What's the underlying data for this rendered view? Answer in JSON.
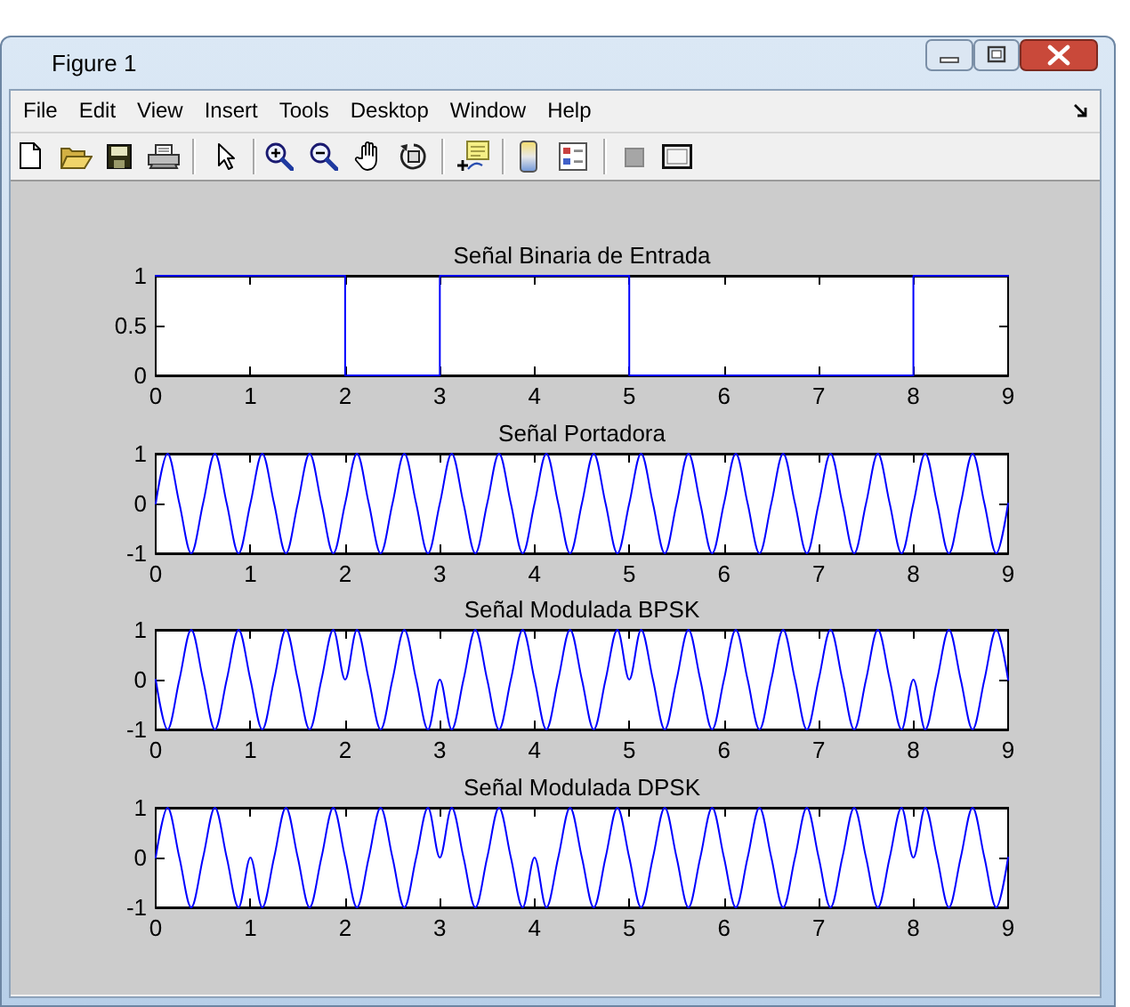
{
  "chart_data": [
    {
      "type": "other",
      "title": "Figure 1",
      "annotations": [
        "File",
        "Edit",
        "View",
        "Insert",
        "Tools",
        "Desktop",
        "Window",
        "Help"
      ]
    },
    {
      "type": "step",
      "title": "Señal Binaria de Entrada",
      "x": [
        0,
        1,
        2,
        3,
        4,
        5,
        6,
        7,
        8,
        9
      ],
      "values": [
        1,
        1,
        0,
        1,
        1,
        0,
        0,
        0,
        1,
        1
      ],
      "color": "#0000ff",
      "xlim": [
        0,
        9
      ],
      "xticks": [
        0,
        1,
        2,
        3,
        4,
        5,
        6,
        7,
        8,
        9
      ],
      "ylim": [
        0,
        1
      ],
      "yticks": [
        0,
        0.5,
        1
      ]
    },
    {
      "type": "line",
      "title": "Señal Portadora",
      "x": [
        0,
        0.125,
        0.25,
        0.375,
        0.5,
        0.625,
        0.75,
        0.875,
        1,
        1.125,
        1.25,
        1.375,
        1.5,
        1.625,
        1.75,
        1.875,
        2,
        2.125,
        2.25,
        2.375,
        2.5,
        2.625,
        2.75,
        2.875,
        3,
        3.125,
        3.25,
        3.375,
        3.5,
        3.625,
        3.75,
        3.875,
        4,
        4.125,
        4.25,
        4.375,
        4.5,
        4.625,
        4.75,
        4.875,
        5,
        5.125,
        5.25,
        5.375,
        5.5,
        5.625,
        5.75,
        5.875,
        6,
        6.125,
        6.25,
        6.375,
        6.5,
        6.625,
        6.75,
        6.875,
        7,
        7.125,
        7.25,
        7.375,
        7.5,
        7.625,
        7.75,
        7.875,
        8,
        8.125,
        8.25,
        8.375,
        8.5,
        8.625,
        8.75,
        8.875,
        9
      ],
      "values": [
        0,
        1,
        0,
        -1,
        0,
        1,
        0,
        -1,
        0,
        1,
        0,
        -1,
        0,
        1,
        0,
        -1,
        0,
        1,
        0,
        -1,
        0,
        1,
        0,
        -1,
        0,
        1,
        0,
        -1,
        0,
        1,
        0,
        -1,
        0,
        1,
        0,
        -1,
        0,
        1,
        0,
        -1,
        0,
        1,
        0,
        -1,
        0,
        1,
        0,
        -1,
        0,
        1,
        0,
        -1,
        0,
        1,
        0,
        -1,
        0,
        1,
        0,
        -1,
        0,
        1,
        0,
        -1,
        0,
        1,
        0,
        -1,
        0,
        1,
        0,
        -1,
        0
      ],
      "color": "#0000ff",
      "xlim": [
        0,
        9
      ],
      "xticks": [
        0,
        1,
        2,
        3,
        4,
        5,
        6,
        7,
        8,
        9
      ],
      "ylim": [
        -1,
        1
      ],
      "yticks": [
        -1,
        0,
        1
      ]
    },
    {
      "type": "line",
      "title": "Señal Modulada BPSK",
      "x": [
        0,
        0.125,
        0.25,
        0.375,
        0.5,
        0.625,
        0.75,
        0.875,
        1,
        1.125,
        1.25,
        1.375,
        1.5,
        1.625,
        1.75,
        1.875,
        2,
        2.125,
        2.25,
        2.375,
        2.5,
        2.625,
        2.75,
        2.875,
        3,
        3.125,
        3.25,
        3.375,
        3.5,
        3.625,
        3.75,
        3.875,
        4,
        4.125,
        4.25,
        4.375,
        4.5,
        4.625,
        4.75,
        4.875,
        5,
        5.125,
        5.25,
        5.375,
        5.5,
        5.625,
        5.75,
        5.875,
        6,
        6.125,
        6.25,
        6.375,
        6.5,
        6.625,
        6.75,
        6.875,
        7,
        7.125,
        7.25,
        7.375,
        7.5,
        7.625,
        7.75,
        7.875,
        8,
        8.125,
        8.25,
        8.375,
        8.5,
        8.625,
        8.75,
        8.875,
        9
      ],
      "values": [
        0,
        -1,
        0,
        1,
        0,
        -1,
        0,
        1,
        0,
        -1,
        0,
        1,
        0,
        -1,
        0,
        1,
        0,
        1,
        0,
        -1,
        0,
        1,
        0,
        -1,
        0,
        -1,
        0,
        1,
        0,
        -1,
        0,
        1,
        0,
        -1,
        0,
        1,
        0,
        -1,
        0,
        1,
        0,
        1,
        0,
        -1,
        0,
        1,
        0,
        -1,
        0,
        1,
        0,
        -1,
        0,
        1,
        0,
        -1,
        0,
        1,
        0,
        -1,
        0,
        1,
        0,
        -1,
        0,
        -1,
        0,
        1,
        0,
        -1,
        0,
        1,
        0
      ],
      "color": "#0000ff",
      "xlim": [
        0,
        9
      ],
      "xticks": [
        0,
        1,
        2,
        3,
        4,
        5,
        6,
        7,
        8,
        9
      ],
      "ylim": [
        -1,
        1
      ],
      "yticks": [
        -1,
        0,
        1
      ]
    },
    {
      "type": "line",
      "title": "Señal Modulada DPSK",
      "x": [
        0,
        0.125,
        0.25,
        0.375,
        0.5,
        0.625,
        0.75,
        0.875,
        1,
        1.125,
        1.25,
        1.375,
        1.5,
        1.625,
        1.75,
        1.875,
        2,
        2.125,
        2.25,
        2.375,
        2.5,
        2.625,
        2.75,
        2.875,
        3,
        3.125,
        3.25,
        3.375,
        3.5,
        3.625,
        3.75,
        3.875,
        4,
        4.125,
        4.25,
        4.375,
        4.5,
        4.625,
        4.75,
        4.875,
        5,
        5.125,
        5.25,
        5.375,
        5.5,
        5.625,
        5.75,
        5.875,
        6,
        6.125,
        6.25,
        6.375,
        6.5,
        6.625,
        6.75,
        6.875,
        7,
        7.125,
        7.25,
        7.375,
        7.5,
        7.625,
        7.75,
        7.875,
        8,
        8.125,
        8.25,
        8.375,
        8.5,
        8.625,
        8.75,
        8.875,
        9
      ],
      "values": [
        0,
        1,
        0,
        -1,
        0,
        1,
        0,
        -1,
        0,
        -1,
        0,
        1,
        0,
        -1,
        0,
        1,
        0,
        -1,
        0,
        1,
        0,
        -1,
        0,
        1,
        0,
        1,
        0,
        -1,
        0,
        1,
        0,
        -1,
        0,
        -1,
        0,
        1,
        0,
        -1,
        0,
        1,
        0,
        -1,
        0,
        1,
        0,
        -1,
        0,
        1,
        0,
        -1,
        0,
        1,
        0,
        -1,
        0,
        1,
        0,
        -1,
        0,
        1,
        0,
        -1,
        0,
        1,
        0,
        1,
        0,
        -1,
        0,
        1,
        0,
        -1,
        0
      ],
      "color": "#0000ff",
      "xlim": [
        0,
        9
      ],
      "xticks": [
        0,
        1,
        2,
        3,
        4,
        5,
        6,
        7,
        8,
        9
      ],
      "ylim": [
        -1,
        1
      ],
      "yticks": [
        -1,
        0,
        1
      ]
    }
  ]
}
